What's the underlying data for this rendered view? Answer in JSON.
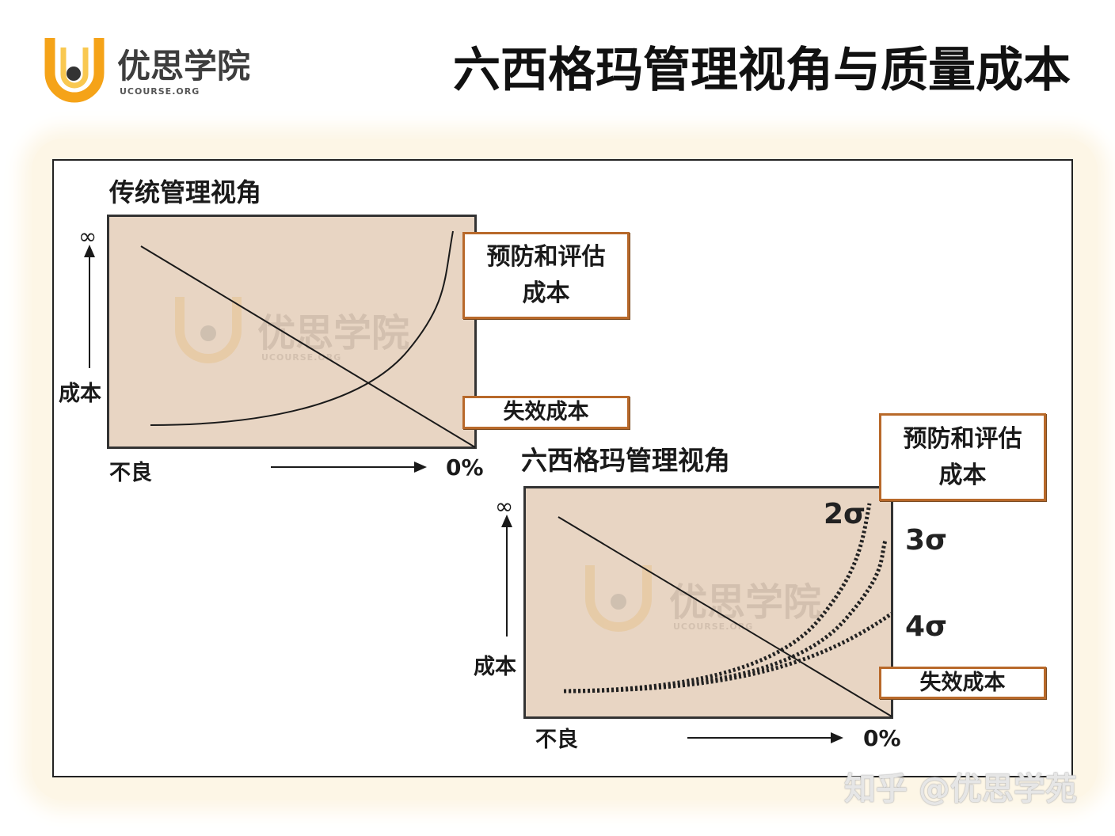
{
  "header": {
    "logo_name": "优思学院",
    "logo_domain": "UCOURSE.ORG",
    "title": "六西格玛管理视角与质量成本"
  },
  "traditional": {
    "title": "传统管理视角",
    "y_axis_top": "∞",
    "y_axis_label": "成本",
    "x_axis_left": "不良",
    "x_axis_right": "0%",
    "prevention_cost": {
      "line1": "预防和评估",
      "line2": "成本"
    },
    "failure_cost": "失效成本",
    "watermark": {
      "name": "优思学院",
      "domain": "UCOURSE.ORG"
    }
  },
  "six_sigma": {
    "title": "六西格玛管理视角",
    "y_axis_top": "∞",
    "y_axis_label": "成本",
    "x_axis_left": "不良",
    "x_axis_right": "0%",
    "prevention_cost": {
      "line1": "预防和评估",
      "line2": "成本"
    },
    "failure_cost": "失效成本",
    "curve_labels": {
      "two_sigma": "2σ",
      "three_sigma": "3σ",
      "four_sigma": "4σ"
    },
    "watermark": {
      "name": "优思学院",
      "domain": "UCOURSE.ORG"
    }
  },
  "footer_watermark": "知乎 @优思学苑",
  "colors": {
    "chart_fill": "#e8d5c3",
    "label_box_border": "#b8692a",
    "logo_accent": "#f5a318",
    "text": "#111111"
  }
}
